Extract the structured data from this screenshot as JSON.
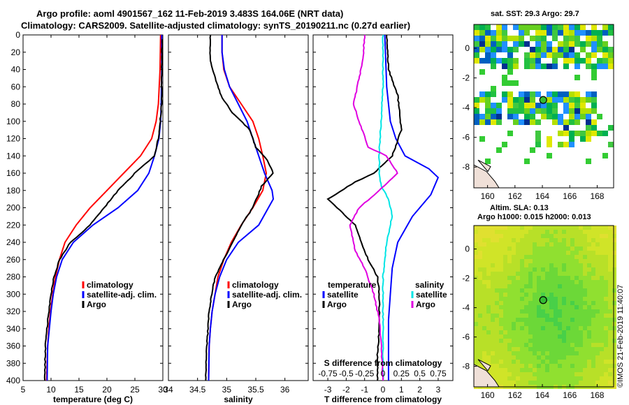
{
  "title": {
    "line1": "Argo profile: aoml 4901567_162 11-Feb-2019 3.483S 164.06E (NRT data)",
    "line2": "Climatology: CARS2009. Satellite-adjusted climatology: synTS_20190211.nc (0.27d earlier)"
  },
  "footer_stamp": "©IMOS 21-Feb-2019 11:40:07",
  "colors": {
    "climatology": "#ff0000",
    "satellite": "#0000ff",
    "argo": "#000000",
    "sat_salinity": "#00e5e5",
    "argo_salinity": "#e000e0"
  },
  "chart_data": [
    {
      "id": "temperature",
      "type": "line",
      "xlabel": "temperature (deg C)",
      "ylabel": "",
      "xlim": [
        5,
        30
      ],
      "ylim": [
        400,
        0
      ],
      "xticks": [
        5,
        10,
        15,
        20,
        25,
        30
      ],
      "yticks": [
        0,
        20,
        40,
        60,
        80,
        100,
        120,
        140,
        160,
        180,
        200,
        220,
        240,
        260,
        280,
        300,
        320,
        340,
        360,
        380,
        400
      ],
      "legend": [
        "climatology",
        "satellite-adj. clim.",
        "Argo"
      ],
      "series": [
        {
          "name": "climatology",
          "color": "#ff0000",
          "x": [
            29.6,
            29.5,
            29.2,
            28.8,
            28.0,
            26.0,
            23.0,
            20.0,
            17.0,
            14.5,
            12.5,
            11.5,
            10.8,
            10.3,
            9.9,
            9.6,
            9.4,
            9.2
          ],
          "y": [
            0,
            40,
            80,
            100,
            120,
            140,
            160,
            180,
            200,
            220,
            240,
            260,
            280,
            300,
            320,
            340,
            360,
            400
          ]
        },
        {
          "name": "satellite-adj. clim.",
          "color": "#0000ff",
          "x": [
            29.8,
            29.8,
            29.7,
            29.6,
            29.3,
            28.5,
            27.5,
            25.5,
            22.0,
            17.5,
            14.0,
            12.0,
            11.0,
            10.4,
            10.0,
            9.7,
            9.4,
            9.3
          ],
          "y": [
            0,
            40,
            80,
            100,
            120,
            140,
            160,
            180,
            200,
            220,
            240,
            260,
            280,
            300,
            320,
            340,
            360,
            400
          ]
        },
        {
          "name": "Argo",
          "color": "#000000",
          "x": [
            29.9,
            29.8,
            29.8,
            29.5,
            29.2,
            28.5,
            25.0,
            22.0,
            19.5,
            17.0,
            13.5,
            11.5,
            10.5,
            10.0,
            9.6,
            9.3,
            9.0,
            8.9
          ],
          "y": [
            5,
            40,
            80,
            100,
            120,
            140,
            160,
            180,
            200,
            220,
            240,
            260,
            280,
            300,
            320,
            340,
            360,
            400
          ]
        }
      ]
    },
    {
      "id": "salinity",
      "type": "line",
      "xlabel": "salinity",
      "ylabel": "",
      "xlim": [
        34,
        36.4
      ],
      "ylim": [
        400,
        0
      ],
      "xticks": [
        34,
        34.5,
        35,
        35.5,
        36
      ],
      "legend": [
        "climatology",
        "satellite-adj. clim.",
        "Argo"
      ],
      "series": [
        {
          "name": "climatology",
          "color": "#ff0000",
          "x": [
            34.92,
            34.92,
            34.95,
            35.05,
            35.25,
            35.45,
            35.55,
            35.62,
            35.68,
            35.62,
            35.45,
            35.25,
            35.08,
            34.95,
            34.85,
            34.8,
            34.75,
            34.72,
            34.7,
            34.69
          ],
          "y": [
            0,
            20,
            40,
            60,
            80,
            100,
            120,
            140,
            160,
            180,
            200,
            220,
            240,
            260,
            280,
            300,
            320,
            340,
            360,
            400
          ]
        },
        {
          "name": "satellite-adj. clim.",
          "color": "#0000ff",
          "x": [
            34.92,
            34.92,
            34.96,
            35.05,
            35.2,
            35.35,
            35.45,
            35.55,
            35.65,
            35.78,
            35.8,
            35.55,
            35.2,
            35.0,
            34.88,
            34.8,
            34.75,
            34.72,
            34.7,
            34.69
          ],
          "y": [
            0,
            20,
            40,
            60,
            80,
            100,
            120,
            140,
            160,
            180,
            190,
            220,
            240,
            260,
            280,
            300,
            320,
            340,
            360,
            400
          ]
        },
        {
          "name": "Argo",
          "color": "#000000",
          "x": [
            34.72,
            34.72,
            34.8,
            34.9,
            35.1,
            35.4,
            35.5,
            35.7,
            35.8,
            35.6,
            35.45,
            35.25,
            35.1,
            34.95,
            34.8,
            34.74,
            34.7,
            34.68,
            34.66,
            34.64
          ],
          "y": [
            0,
            30,
            50,
            70,
            90,
            110,
            130,
            145,
            160,
            175,
            200,
            220,
            240,
            260,
            280,
            300,
            320,
            340,
            360,
            400
          ]
        }
      ]
    },
    {
      "id": "difference",
      "type": "line",
      "xlabel": "T difference from climatology",
      "title": "S difference from climatology",
      "xlim": [
        -3.8,
        3.8
      ],
      "ylim": [
        400,
        0
      ],
      "xticks": [
        -3,
        -2,
        -1,
        0,
        1,
        2,
        3
      ],
      "top_tick_labels": [
        "-0.75",
        "-0.5",
        "-0.25",
        "0",
        "0.25",
        "0.5",
        "0.75"
      ],
      "legend_left_title": "temperature",
      "legend_right_title": "salinity",
      "legend_left": [
        "satellite",
        "Argo"
      ],
      "legend_right": [
        "satellite",
        "Argo"
      ],
      "series": [
        {
          "name": "satellite (temperature)",
          "color": "#0000ff",
          "x": [
            0.1,
            0.2,
            0.4,
            0.7,
            1.2,
            2.5,
            3.0,
            2.6,
            1.6,
            0.8,
            0.5,
            0.4,
            0.3,
            0.3,
            0.3,
            0.3
          ],
          "y": [
            0,
            60,
            100,
            120,
            140,
            155,
            165,
            185,
            210,
            240,
            270,
            300,
            330,
            360,
            380,
            400
          ]
        },
        {
          "name": "Argo (temperature)",
          "color": "#000000",
          "x": [
            0.2,
            0.3,
            0.8,
            0.9,
            1.0,
            0.5,
            -0.5,
            -1.5,
            -3.0,
            -2.5,
            -1.5,
            -1.2,
            -0.8,
            -0.3,
            -0.2,
            -0.2,
            -0.3,
            -0.3
          ],
          "y": [
            0,
            40,
            70,
            90,
            110,
            140,
            160,
            170,
            190,
            200,
            220,
            240,
            260,
            280,
            300,
            340,
            370,
            400
          ]
        },
        {
          "name": "satellite (salinity)",
          "color": "#00e5e5",
          "x": [
            0.0,
            0.0,
            -0.1,
            -0.2,
            -0.2,
            -0.1,
            0.3,
            0.5,
            0.2,
            0.0,
            0.0,
            0.0,
            0.0
          ],
          "y": [
            0,
            60,
            100,
            130,
            160,
            175,
            190,
            210,
            240,
            280,
            320,
            360,
            400
          ]
        },
        {
          "name": "Argo (salinity)",
          "color": "#e000e0",
          "x": [
            -1.0,
            -1.1,
            -1.4,
            -1.6,
            -1.3,
            -0.8,
            0.2,
            0.8,
            -0.2,
            -1.3,
            -1.8,
            -1.5,
            -1.0,
            -0.5,
            -0.2,
            -0.1,
            0.0
          ],
          "y": [
            0,
            30,
            60,
            80,
            100,
            130,
            140,
            160,
            180,
            200,
            220,
            250,
            270,
            300,
            330,
            360,
            400
          ]
        }
      ]
    },
    {
      "id": "sst_map",
      "type": "heatmap",
      "title": "sat. SST: 29.3 Argo: 29.7",
      "xticks": [
        160,
        162,
        164,
        166,
        168
      ],
      "yticks": [
        0,
        -2,
        -4,
        -6,
        -8
      ],
      "xlim": [
        159,
        169.2
      ],
      "ylim": [
        -9.4,
        1.6
      ],
      "marker": {
        "lon": 164.06,
        "lat": -3.483
      }
    },
    {
      "id": "sla_map",
      "type": "heatmap",
      "title": "Altim. SLA: 0.13",
      "subtitle": "Argo h1000: 0.015 h2000: 0.013",
      "xticks": [
        160,
        162,
        164,
        166,
        168
      ],
      "yticks": [
        0,
        -2,
        -4,
        -6,
        -8
      ],
      "xlim": [
        159,
        169.2
      ],
      "ylim": [
        -9.4,
        1.6
      ],
      "marker": {
        "lon": 164.06,
        "lat": -3.483
      }
    }
  ]
}
